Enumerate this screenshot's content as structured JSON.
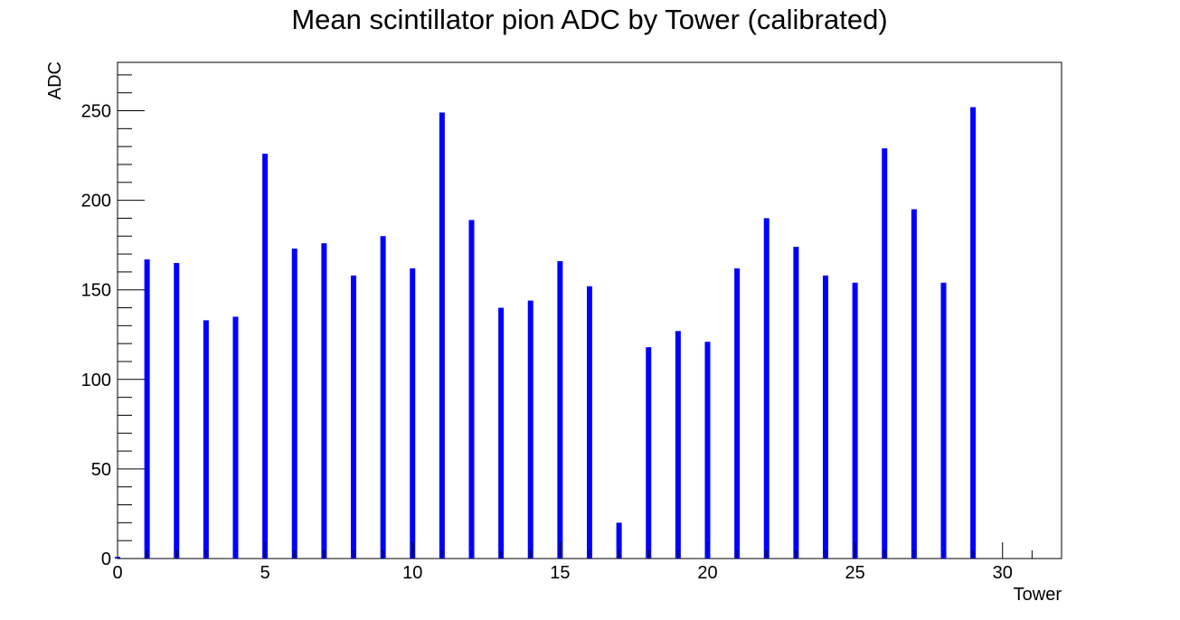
{
  "chart_data": {
    "type": "bar",
    "title": "Mean scintillator pion ADC by Tower (calibrated)",
    "xlabel": "Tower",
    "ylabel": "ADC",
    "xlim": [
      0,
      32
    ],
    "ylim": [
      0,
      277
    ],
    "x_ticks": [
      0,
      5,
      10,
      15,
      20,
      25,
      30
    ],
    "y_ticks": [
      0,
      50,
      100,
      150,
      200,
      250
    ],
    "bar_color": "#0000ff",
    "grid": false,
    "legend": "none",
    "x": [
      0,
      1,
      2,
      3,
      4,
      5,
      6,
      7,
      8,
      9,
      10,
      11,
      12,
      13,
      14,
      15,
      16,
      17,
      18,
      19,
      20,
      21,
      22,
      23,
      24,
      25,
      26,
      27,
      28,
      29,
      30,
      31
    ],
    "values": [
      1,
      167,
      165,
      133,
      135,
      226,
      173,
      176,
      158,
      180,
      162,
      249,
      189,
      140,
      144,
      166,
      152,
      20,
      118,
      127,
      121,
      162,
      190,
      174,
      158,
      154,
      229,
      195,
      154,
      252,
      0,
      0
    ]
  }
}
